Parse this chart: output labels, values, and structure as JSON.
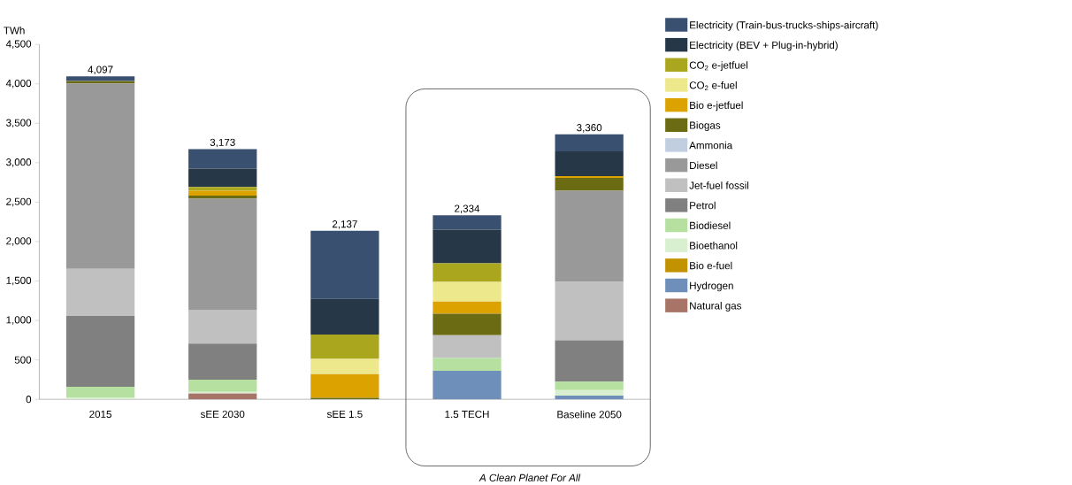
{
  "chart_data": {
    "type": "bar",
    "stacked": true,
    "ylabel": "TWh",
    "categories": [
      "2015",
      "sEE 2030",
      "sEE 1.5",
      "1.5 TECH",
      "Baseline 2050"
    ],
    "ylim": [
      0,
      4500
    ],
    "yticks": [
      0,
      500,
      {
        "value": 1000,
        "label": "1,000"
      },
      {
        "value": 1500,
        "label": "1,500"
      },
      {
        "value": 2000,
        "label": "2,000"
      },
      {
        "value": 2500,
        "label": "2,500"
      },
      {
        "value": 3000,
        "label": "3,000"
      },
      {
        "value": 3500,
        "label": "3,500"
      },
      {
        "value": 4000,
        "label": "4,000"
      },
      {
        "value": 4500,
        "label": "4,500"
      }
    ],
    "grid": false,
    "legend": "right",
    "totals": [
      "4,097",
      "3,173",
      "2,137",
      "2,334",
      "3,360"
    ],
    "annotations": [
      "A Clean Planet For All"
    ],
    "series": [
      {
        "name": "Natural gas",
        "color": "#a87468",
        "values": [
          0,
          75,
          0,
          0,
          0
        ]
      },
      {
        "name": "Hydrogen",
        "color": "#6e8fba",
        "values": [
          0,
          0,
          0,
          361,
          47
        ]
      },
      {
        "name": "Bio e-fuel",
        "color": "#c39200",
        "values": [
          0,
          0,
          0,
          0,
          0
        ]
      },
      {
        "name": "Bioethanol",
        "color": "#d9f0d0",
        "values": [
          20,
          20,
          0,
          0,
          69
        ]
      },
      {
        "name": "Biodiesel",
        "color": "#b6e0a0",
        "values": [
          140,
          155,
          0,
          163,
          108
        ]
      },
      {
        "name": "Petrol",
        "color": "#808080",
        "values": [
          898,
          455,
          0,
          0,
          524
        ]
      },
      {
        "name": "Jet-fuel fossil",
        "color": "#c0c0c0",
        "values": [
          596,
          430,
          0,
          289,
          741
        ]
      },
      {
        "name": "Diesel",
        "color": "#999999",
        "values": [
          2352,
          1409,
          0,
          0,
          1156
        ]
      },
      {
        "name": "Ammonia",
        "color": "#c0cee0",
        "values": [
          0,
          0,
          0,
          0,
          0
        ]
      },
      {
        "name": "Biogas",
        "color": "#6b6b14",
        "values": [
          30,
          40,
          18,
          271,
          163
        ]
      },
      {
        "name": "Bio e-jetfuel",
        "color": "#dca200",
        "values": [
          0,
          61,
          300,
          155,
          22
        ]
      },
      {
        "name": "CO$_{2}$ e-fuel",
        "color": "#eee88c",
        "values": [
          0,
          0,
          195,
          250,
          0
        ]
      },
      {
        "name": "CO$_{2}$ e-jetfuel",
        "color": "#aaa61e",
        "values": [
          0,
          47,
          307,
          235,
          0
        ]
      },
      {
        "name": "Electricity (BEV + Plug-in-hybrid)",
        "color": "#263748",
        "values": [
          0,
          235,
          452,
          426,
          314
        ]
      },
      {
        "name": "Electricity (Train-bus-trucks-ships-aircraft)",
        "color": "#3a5070",
        "values": [
          61,
          246,
          865,
          184,
          216
        ]
      }
    ]
  }
}
